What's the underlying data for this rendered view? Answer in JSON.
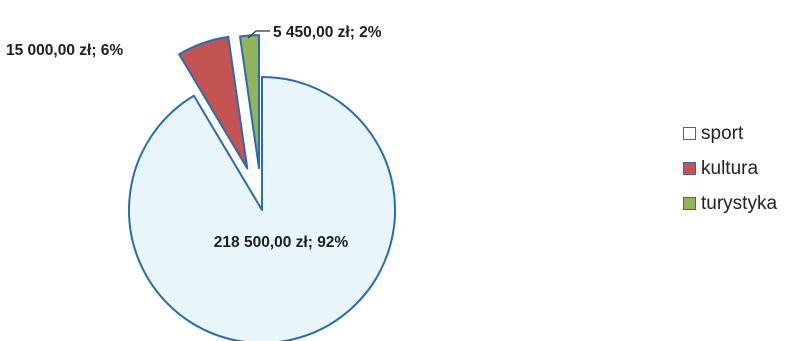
{
  "chart_data": {
    "type": "pie",
    "categories": [
      "sport",
      "kultura",
      "turystyka"
    ],
    "values": [
      218500,
      15000,
      5450
    ],
    "percentages": [
      92,
      6,
      2
    ],
    "data_labels": [
      "218 500,00 zł; 92%",
      "15 000,00 zł; 6%",
      "5 450,00 zł; 2%"
    ],
    "colors": [
      "#e8f6fb",
      "#c45353",
      "#93b35a"
    ],
    "edge_colors": [
      "#2b6cb0",
      "#2b6cb0",
      "#2b6cb0"
    ],
    "title": "",
    "legend_position": "right",
    "exploded_slices": [
      "kultura",
      "turystyka"
    ]
  },
  "legend": {
    "items": [
      {
        "label": "sport",
        "color": "#ffffff"
      },
      {
        "label": "kultura",
        "color": "#c45353"
      },
      {
        "label": "turystyka",
        "color": "#93b35a"
      }
    ]
  }
}
